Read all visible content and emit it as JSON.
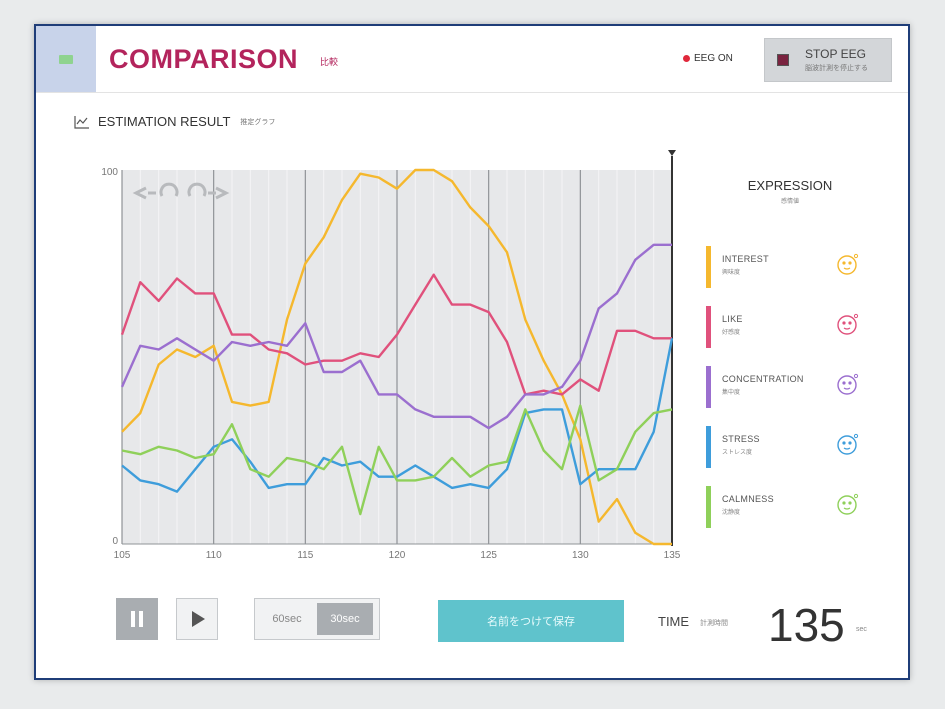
{
  "header": {
    "title": "COMPARISON",
    "title_sub": "比較",
    "eeg_status": "EEG ON",
    "stop_label": "STOP EEG",
    "stop_sub": "脳波計測を停止する"
  },
  "section": {
    "title": "ESTIMATION RESULT",
    "sub": "推定グラフ"
  },
  "legend": {
    "title": "EXPRESSION",
    "title_sub": "感情値",
    "items": [
      {
        "label": "INTEREST",
        "sub": "興味度",
        "color": "#f5b82e",
        "icon": "face-icon"
      },
      {
        "label": "LIKE",
        "sub": "好感度",
        "color": "#e0517c",
        "icon": "face-icon"
      },
      {
        "label": "CONCENTRATION",
        "sub": "集中度",
        "color": "#9b6fcf",
        "icon": "face-icon"
      },
      {
        "label": "STRESS",
        "sub": "ストレス度",
        "color": "#3e9ddb",
        "icon": "face-icon"
      },
      {
        "label": "CALMNESS",
        "sub": "沈静度",
        "color": "#8fd05a",
        "icon": "face-icon"
      }
    ]
  },
  "controls": {
    "range_a": "60sec",
    "range_b": "30sec",
    "save_label": "名前をつけて保存",
    "time_label": "TIME",
    "time_sub": "計測時間",
    "time_value": "135",
    "time_unit": "sec"
  },
  "chart_data": {
    "type": "line",
    "ylim": [
      0,
      100
    ],
    "xlim": [
      105,
      135
    ],
    "y_ticks": [
      "0",
      "100"
    ],
    "x_ticks": [
      "105",
      "110",
      "115",
      "120",
      "125",
      "130",
      "135"
    ],
    "grid": true,
    "x": [
      105,
      106,
      107,
      108,
      109,
      110,
      111,
      112,
      113,
      114,
      115,
      116,
      117,
      118,
      119,
      120,
      121,
      122,
      123,
      124,
      125,
      126,
      127,
      128,
      129,
      130,
      131,
      132,
      133,
      134,
      135
    ],
    "series": [
      {
        "name": "INTEREST",
        "color": "#f5b82e",
        "values": [
          30,
          35,
          48,
          52,
          50,
          53,
          38,
          37,
          38,
          60,
          75,
          82,
          92,
          99,
          98,
          95,
          100,
          100,
          97,
          90,
          85,
          78,
          60,
          49,
          40,
          28,
          6,
          12,
          3,
          0,
          0
        ]
      },
      {
        "name": "LIKE",
        "color": "#e0517c",
        "values": [
          56,
          70,
          65,
          71,
          67,
          67,
          56,
          56,
          52,
          51,
          48,
          49,
          49,
          51,
          50,
          56,
          64,
          72,
          64,
          64,
          62,
          54,
          40,
          41,
          40,
          44,
          41,
          57,
          57,
          55,
          55
        ]
      },
      {
        "name": "CONCENTRATION",
        "color": "#9b6fcf",
        "values": [
          42,
          53,
          52,
          55,
          52,
          49,
          54,
          53,
          54,
          53,
          59,
          46,
          46,
          49,
          40,
          40,
          36,
          34,
          34,
          34,
          31,
          34,
          40,
          40,
          42,
          49,
          63,
          67,
          76,
          80,
          80
        ]
      },
      {
        "name": "STRESS",
        "color": "#3e9ddb",
        "values": [
          21,
          17,
          16,
          14,
          20,
          26,
          28,
          22,
          15,
          16,
          16,
          23,
          21,
          22,
          18,
          18,
          21,
          18,
          15,
          16,
          15,
          20,
          35,
          36,
          36,
          16,
          20,
          20,
          20,
          30,
          55
        ]
      },
      {
        "name": "CALMNESS",
        "color": "#8fd05a",
        "values": [
          25,
          24,
          26,
          25,
          23,
          24,
          32,
          20,
          18,
          23,
          22,
          20,
          26,
          8,
          26,
          17,
          17,
          18,
          23,
          18,
          21,
          22,
          36,
          25,
          20,
          37,
          17,
          20,
          30,
          35,
          36
        ]
      }
    ]
  }
}
